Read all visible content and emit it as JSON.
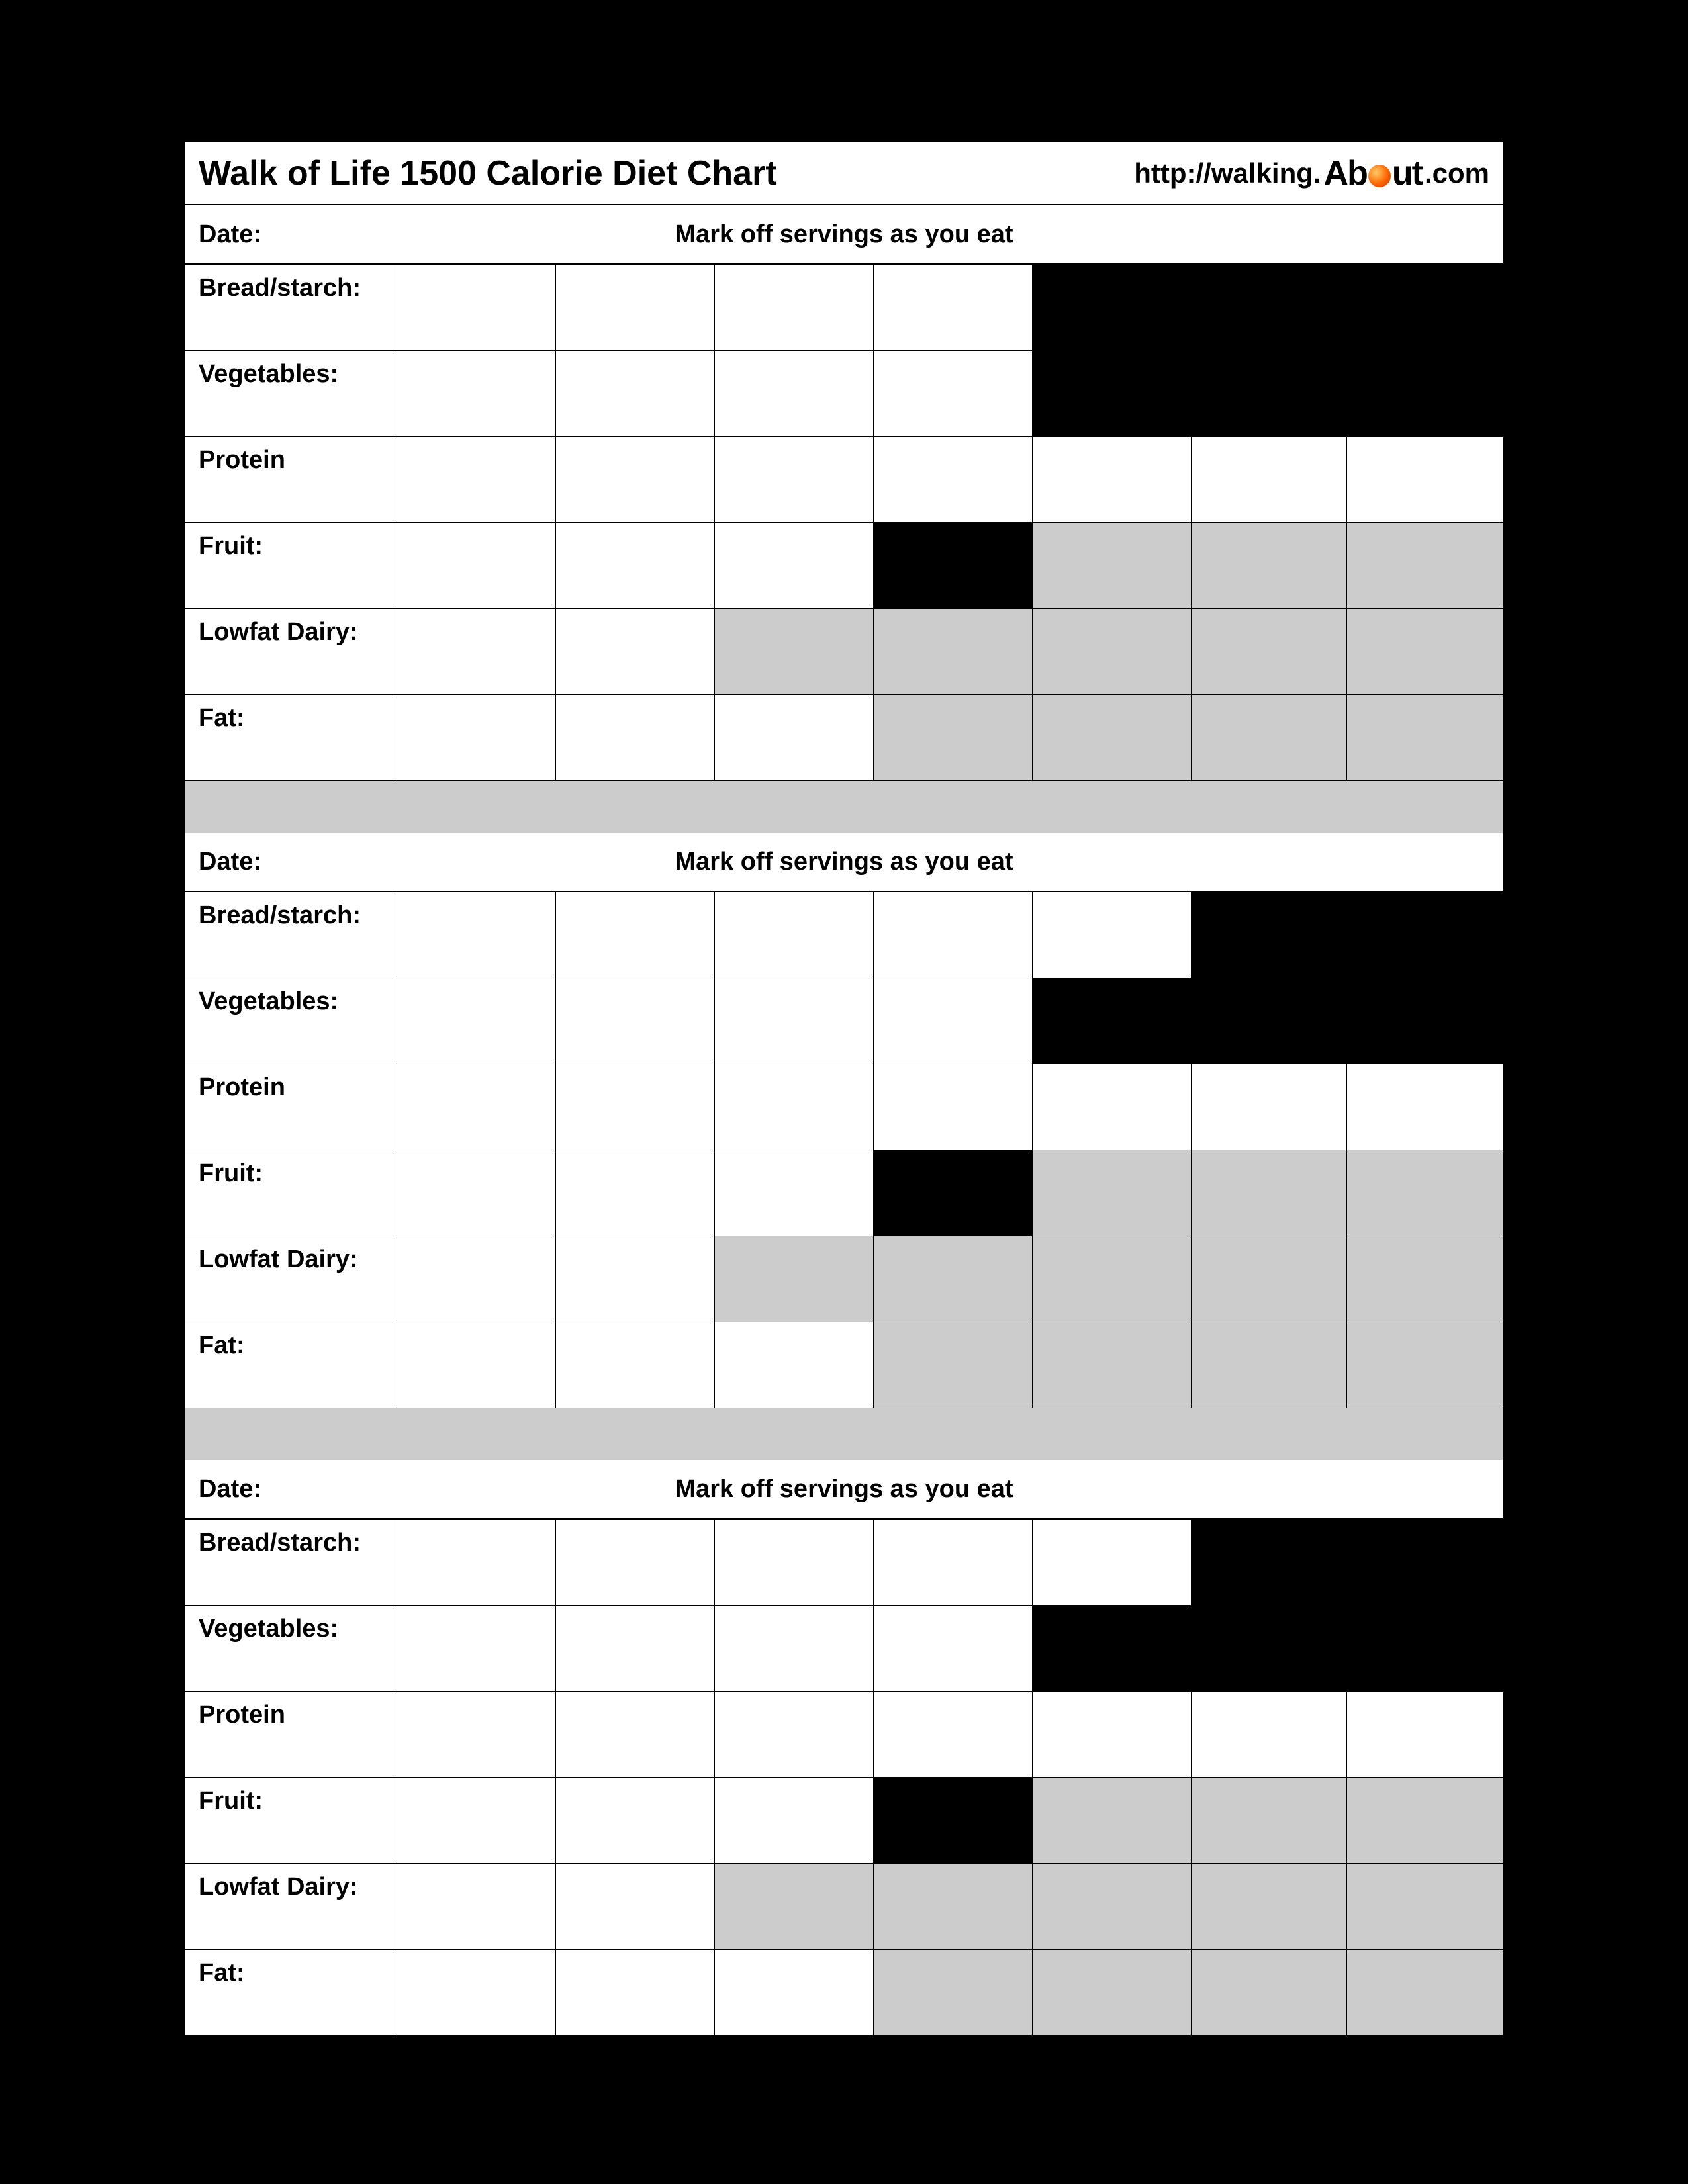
{
  "header": {
    "title": "Walk of Life 1500 Calorie Diet Chart",
    "url_prefix": "http://walking.",
    "logo_ab": "Ab",
    "logo_ut": "ut",
    "url_suffix": ".com"
  },
  "colors": {
    "white": "#ffffff",
    "black": "#000000",
    "gray": "#cccccc"
  },
  "labels": {
    "date": "Date:",
    "instruction": "Mark off servings as you eat"
  },
  "categories": [
    {
      "name": "Bread/starch:"
    },
    {
      "name": "Vegetables:"
    },
    {
      "name": "Protein"
    },
    {
      "name": "Fruit:"
    },
    {
      "name": "Lowfat Dairy:"
    },
    {
      "name": "Fat:"
    }
  ],
  "blocks": [
    {
      "rows": [
        {
          "cells": [
            "white",
            "white",
            "white",
            "white",
            "black",
            "black"
          ],
          "split6": false
        },
        {
          "cells": [
            "white",
            "white",
            "white",
            "white",
            "black",
            "black"
          ],
          "split6": false
        },
        {
          "cells": [
            "white",
            "white",
            "white",
            "white",
            "white",
            "white"
          ],
          "split6": true
        },
        {
          "cells": [
            "white",
            "white",
            "white",
            "black",
            "gray",
            "gray"
          ],
          "split6": true
        },
        {
          "cells": [
            "white",
            "white",
            "gray",
            "gray",
            "gray",
            "gray"
          ],
          "split6": true
        },
        {
          "cells": [
            "white",
            "white",
            "white",
            "gray",
            "gray",
            "gray"
          ],
          "split6": true
        }
      ]
    },
    {
      "rows": [
        {
          "cells": [
            "white",
            "white",
            "white",
            "white",
            "white",
            "black"
          ],
          "split6": false
        },
        {
          "cells": [
            "white",
            "white",
            "white",
            "white",
            "black",
            "black"
          ],
          "split6": false
        },
        {
          "cells": [
            "white",
            "white",
            "white",
            "white",
            "white",
            "white"
          ],
          "split6": true
        },
        {
          "cells": [
            "white",
            "white",
            "white",
            "black",
            "gray",
            "gray"
          ],
          "split6": true
        },
        {
          "cells": [
            "white",
            "white",
            "gray",
            "gray",
            "gray",
            "gray"
          ],
          "split6": true
        },
        {
          "cells": [
            "white",
            "white",
            "white",
            "gray",
            "gray",
            "gray"
          ],
          "split6": true
        }
      ]
    },
    {
      "rows": [
        {
          "cells": [
            "white",
            "white",
            "white",
            "white",
            "white",
            "black"
          ],
          "split6": false
        },
        {
          "cells": [
            "white",
            "white",
            "white",
            "white",
            "black",
            "black"
          ],
          "split6": false
        },
        {
          "cells": [
            "white",
            "white",
            "white",
            "white",
            "white",
            "white"
          ],
          "split6": true
        },
        {
          "cells": [
            "white",
            "white",
            "white",
            "black",
            "gray",
            "gray"
          ],
          "split6": true
        },
        {
          "cells": [
            "white",
            "white",
            "gray",
            "gray",
            "gray",
            "gray"
          ],
          "split6": true
        },
        {
          "cells": [
            "white",
            "white",
            "white",
            "gray",
            "gray",
            "gray"
          ],
          "split6": true
        }
      ]
    }
  ]
}
